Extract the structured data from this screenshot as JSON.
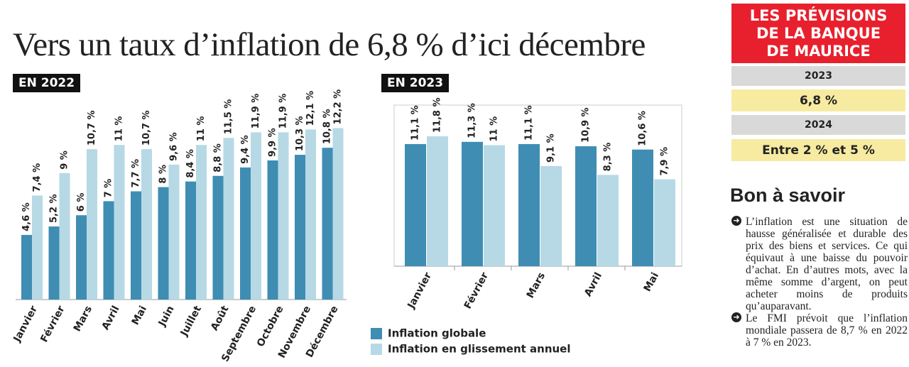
{
  "title": "Vers un taux d’inflation de 6,8 % d’ici décembre",
  "chart_data": [
    {
      "type": "bar",
      "title": "EN 2022",
      "categories": [
        "Janvier",
        "Février",
        "Mars",
        "Avril",
        "Mai",
        "Juin",
        "Juillet",
        "Août",
        "Septembre",
        "Octobre",
        "Novembre",
        "Décembre"
      ],
      "ylim": [
        0,
        13
      ],
      "series": [
        {
          "color": "#3f8db3",
          "values": [
            4.6,
            5.2,
            6,
            7,
            7.7,
            8,
            8.4,
            8.8,
            9.4,
            9.9,
            10.3,
            10.8
          ],
          "value_labels": [
            "4,6 %",
            "5,2 %",
            "6 %",
            "7 %",
            "7,7 %",
            "8 %",
            "8,4 %",
            "8,8 %",
            "9,4 %",
            "9,9 %",
            "10,3 %",
            "10,8 %"
          ]
        },
        {
          "color": "#b6d9e5",
          "values": [
            7.4,
            9,
            10.7,
            11,
            10.7,
            9.6,
            11,
            11.5,
            11.9,
            11.9,
            12.1,
            12.2
          ],
          "value_labels": [
            "7,4 %",
            "9 %",
            "10,7 %",
            "11 %",
            "10,7 %",
            "9,6 %",
            "11 %",
            "11,5 %",
            "11,9 %",
            "11,9 %",
            "12,1 %",
            "12,2 %"
          ]
        }
      ]
    },
    {
      "type": "bar",
      "title": "EN 2023",
      "categories": [
        "Janvier",
        "Février",
        "Mars",
        "Avril",
        "Mai"
      ],
      "ylim": [
        0,
        13
      ],
      "series": [
        {
          "name": "Inflation globale",
          "color": "#3f8db3",
          "values": [
            11.1,
            11.3,
            11.1,
            10.9,
            10.6
          ],
          "value_labels": [
            "11,1 %",
            "11,3 %",
            "11,1 %",
            "10,9 %",
            "10,6 %"
          ]
        },
        {
          "name": "Inflation en glissement annuel",
          "color": "#b6d9e5",
          "values": [
            11.8,
            11,
            9.1,
            8.3,
            7.9
          ],
          "value_labels": [
            "11,8 %",
            "11 %",
            "9,1 %",
            "8,3 %",
            "7,9 %"
          ]
        }
      ]
    }
  ],
  "forecast": {
    "heading": "LES PRÉVISIONS DE LA BANQUE DE MAURICE",
    "rows": [
      "2023",
      "6,8 %",
      "2024",
      "Entre 2 % et 5 %"
    ]
  },
  "info": {
    "heading": "Bon à savoir",
    "bullets": [
      "L’inflation est une situation de hausse généralisée et durable des prix des biens et services. Ce qui équivaut à une baisse du pouvoir d’achat. En d’autres mots, avec la même somme d’argent, on peut acheter moins de produits qu’auparavant.",
      "Le FMI prévoit que l’inflation mondiale passera de 8,7 % en 2022 à 7 % en 2023."
    ]
  }
}
